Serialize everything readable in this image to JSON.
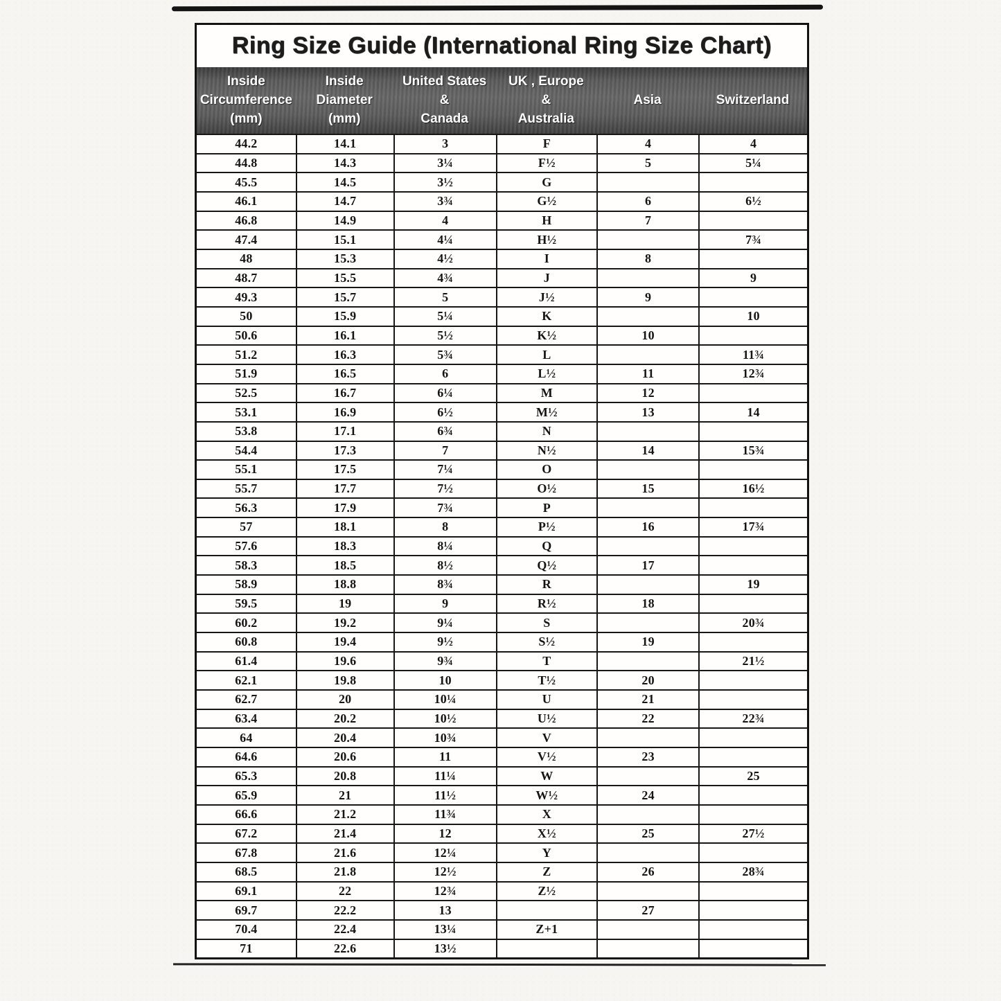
{
  "title": "Ring Size Guide (International Ring Size Chart)",
  "colors": {
    "header_bg": "#5c5c5c",
    "header_text": "#ffffff",
    "border_ink": "#161616",
    "paper": "#f6f5f2"
  },
  "chart_data": {
    "type": "table",
    "title": "Ring Size Guide (International Ring Size Chart)",
    "columns": [
      "Inside Circumference (mm)",
      "Inside Diameter (mm)",
      "United States & Canada",
      "UK , Europe & Australia",
      "Asia",
      "Switzerland"
    ],
    "header_lines": [
      [
        "Inside",
        "Circumference",
        "(mm)"
      ],
      [
        "Inside",
        "Diameter",
        "(mm)"
      ],
      [
        "United States",
        "&",
        "Canada"
      ],
      [
        "UK , Europe",
        "&",
        "Australia"
      ],
      [
        "Asia"
      ],
      [
        "Switzerland"
      ]
    ],
    "rows": [
      [
        "44.2",
        "14.1",
        "3",
        "F",
        "4",
        "4"
      ],
      [
        "44.8",
        "14.3",
        "3¼",
        "F½",
        "5",
        "5¼"
      ],
      [
        "45.5",
        "14.5",
        "3½",
        "G",
        "",
        ""
      ],
      [
        "46.1",
        "14.7",
        "3¾",
        "G½",
        "6",
        "6½"
      ],
      [
        "46.8",
        "14.9",
        "4",
        "H",
        "7",
        ""
      ],
      [
        "47.4",
        "15.1",
        "4¼",
        "H½",
        "",
        "7¾"
      ],
      [
        "48",
        "15.3",
        "4½",
        "I",
        "8",
        ""
      ],
      [
        "48.7",
        "15.5",
        "4¾",
        "J",
        "",
        "9"
      ],
      [
        "49.3",
        "15.7",
        "5",
        "J½",
        "9",
        ""
      ],
      [
        "50",
        "15.9",
        "5¼",
        "K",
        "",
        "10"
      ],
      [
        "50.6",
        "16.1",
        "5½",
        "K½",
        "10",
        ""
      ],
      [
        "51.2",
        "16.3",
        "5¾",
        "L",
        "",
        "11¾"
      ],
      [
        "51.9",
        "16.5",
        "6",
        "L½",
        "11",
        "12¾"
      ],
      [
        "52.5",
        "16.7",
        "6¼",
        "M",
        "12",
        ""
      ],
      [
        "53.1",
        "16.9",
        "6½",
        "M½",
        "13",
        "14"
      ],
      [
        "53.8",
        "17.1",
        "6¾",
        "N",
        "",
        ""
      ],
      [
        "54.4",
        "17.3",
        "7",
        "N½",
        "14",
        "15¾"
      ],
      [
        "55.1",
        "17.5",
        "7¼",
        "O",
        "",
        ""
      ],
      [
        "55.7",
        "17.7",
        "7½",
        "O½",
        "15",
        "16½"
      ],
      [
        "56.3",
        "17.9",
        "7¾",
        "P",
        "",
        ""
      ],
      [
        "57",
        "18.1",
        "8",
        "P½",
        "16",
        "17¾"
      ],
      [
        "57.6",
        "18.3",
        "8¼",
        "Q",
        "",
        ""
      ],
      [
        "58.3",
        "18.5",
        "8½",
        "Q½",
        "17",
        ""
      ],
      [
        "58.9",
        "18.8",
        "8¾",
        "R",
        "",
        "19"
      ],
      [
        "59.5",
        "19",
        "9",
        "R½",
        "18",
        ""
      ],
      [
        "60.2",
        "19.2",
        "9¼",
        "S",
        "",
        "20¾"
      ],
      [
        "60.8",
        "19.4",
        "9½",
        "S½",
        "19",
        ""
      ],
      [
        "61.4",
        "19.6",
        "9¾",
        "T",
        "",
        "21½"
      ],
      [
        "62.1",
        "19.8",
        "10",
        "T½",
        "20",
        ""
      ],
      [
        "62.7",
        "20",
        "10¼",
        "U",
        "21",
        ""
      ],
      [
        "63.4",
        "20.2",
        "10½",
        "U½",
        "22",
        "22¾"
      ],
      [
        "64",
        "20.4",
        "10¾",
        "V",
        "",
        ""
      ],
      [
        "64.6",
        "20.6",
        "11",
        "V½",
        "23",
        ""
      ],
      [
        "65.3",
        "20.8",
        "11¼",
        "W",
        "",
        "25"
      ],
      [
        "65.9",
        "21",
        "11½",
        "W½",
        "24",
        ""
      ],
      [
        "66.6",
        "21.2",
        "11¾",
        "X",
        "",
        ""
      ],
      [
        "67.2",
        "21.4",
        "12",
        "X½",
        "25",
        "27½"
      ],
      [
        "67.8",
        "21.6",
        "12¼",
        "Y",
        "",
        ""
      ],
      [
        "68.5",
        "21.8",
        "12½",
        "Z",
        "26",
        "28¾"
      ],
      [
        "69.1",
        "22",
        "12¾",
        "Z½",
        "",
        ""
      ],
      [
        "69.7",
        "22.2",
        "13",
        "",
        "27",
        ""
      ],
      [
        "70.4",
        "22.4",
        "13¼",
        "Z+1",
        "",
        ""
      ],
      [
        "71",
        "22.6",
        "13½",
        "",
        "",
        ""
      ]
    ]
  }
}
